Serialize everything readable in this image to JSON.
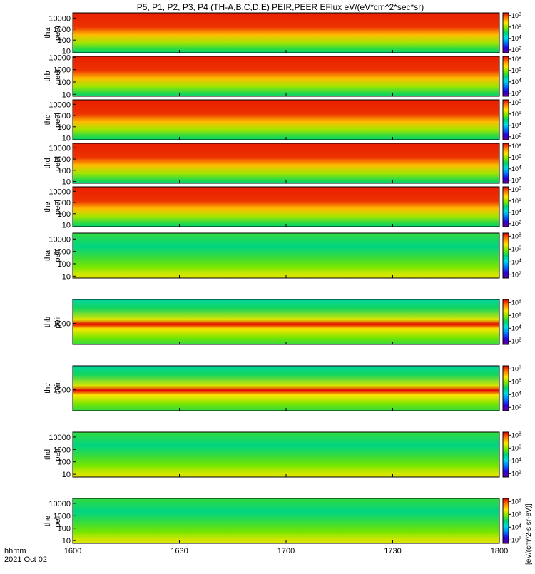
{
  "figure": {
    "title": "P5, P1, P2, P3, P4 (TH-A,B,C,D,E) PEIR,PEER EFlux eV/(eV*cm^2*sec*sr)",
    "time_label": "hhmm",
    "date_label": "2021 Oct 02",
    "colorbar_unit_label": "[eV/(cm^2-s sr-eV)]"
  },
  "chart_data": [
    {
      "type": "heatmap",
      "probe": "tha",
      "species": "peer",
      "ylabel_1": "tha",
      "ylabel_2": "peer",
      "y_scale": "log",
      "y_ticks": [
        "10000",
        "1000",
        "100",
        "10"
      ],
      "y_tick_values": [
        10000,
        1000,
        100,
        10
      ],
      "ylim": [
        7,
        30000
      ],
      "x_ticks": [
        "1600",
        "1630",
        "1700",
        "1730",
        "1800"
      ],
      "cbar_ticks": [
        "10^8",
        "10^6",
        "10^4",
        "10^2"
      ],
      "cbar_tick_values": [
        100000000,
        1000000,
        10000,
        100
      ],
      "cbar_lim": [
        30,
        300000000
      ],
      "palette": "red"
    },
    {
      "type": "heatmap",
      "probe": "thb",
      "species": "peer",
      "ylabel_1": "thb",
      "ylabel_2": "peer",
      "y_scale": "log",
      "y_ticks": [
        "10000",
        "1000",
        "100",
        "10"
      ],
      "y_tick_values": [
        10000,
        1000,
        100,
        10
      ],
      "ylim": [
        7,
        12000
      ],
      "x_ticks": [
        "1600",
        "1630",
        "1700",
        "1730",
        "1800"
      ],
      "cbar_ticks": [
        "10^8",
        "10^6",
        "10^4",
        "10^2"
      ],
      "cbar_tick_values": [
        100000000,
        1000000,
        10000,
        100
      ],
      "cbar_lim": [
        30,
        300000000
      ],
      "palette": "red"
    },
    {
      "type": "heatmap",
      "probe": "thc",
      "species": "peer",
      "ylabel_1": "thc",
      "ylabel_2": "peer",
      "y_scale": "log",
      "y_ticks": [
        "10000",
        "1000",
        "100",
        "10"
      ],
      "y_tick_values": [
        10000,
        1000,
        100,
        10
      ],
      "ylim": [
        7,
        25000
      ],
      "x_ticks": [
        "1600",
        "1630",
        "1700",
        "1730",
        "1800"
      ],
      "cbar_ticks": [
        "10^8",
        "10^6",
        "10^4",
        "10^2"
      ],
      "cbar_tick_values": [
        100000000,
        1000000,
        10000,
        100
      ],
      "cbar_lim": [
        30,
        300000000
      ],
      "palette": "red"
    },
    {
      "type": "heatmap",
      "probe": "thd",
      "species": "peer",
      "ylabel_1": "thd",
      "ylabel_2": "peer",
      "y_scale": "log",
      "y_ticks": [
        "10000",
        "1000",
        "100",
        "10"
      ],
      "y_tick_values": [
        10000,
        1000,
        100,
        10
      ],
      "ylim": [
        7,
        25000
      ],
      "x_ticks": [
        "1600",
        "1630",
        "1700",
        "1730",
        "1800"
      ],
      "cbar_ticks": [
        "10^8",
        "10^6",
        "10^4",
        "10^2"
      ],
      "cbar_tick_values": [
        100000000,
        1000000,
        10000,
        100
      ],
      "cbar_lim": [
        30,
        300000000
      ],
      "palette": "red"
    },
    {
      "type": "heatmap",
      "probe": "the",
      "species": "peer",
      "ylabel_1": "the",
      "ylabel_2": "peer",
      "y_scale": "log",
      "y_ticks": [
        "10000",
        "1000",
        "100",
        "10"
      ],
      "y_tick_values": [
        10000,
        1000,
        100,
        10
      ],
      "ylim": [
        7,
        25000
      ],
      "x_ticks": [
        "1600",
        "1630",
        "1700",
        "1730",
        "1800"
      ],
      "cbar_ticks": [
        "10^8",
        "10^6",
        "10^4",
        "10^2"
      ],
      "cbar_tick_values": [
        100000000,
        1000000,
        10000,
        100
      ],
      "cbar_lim": [
        30,
        300000000
      ],
      "palette": "red"
    },
    {
      "type": "heatmap",
      "probe": "tha",
      "species": "peir",
      "ylabel_1": "tha",
      "ylabel_2": "peir",
      "y_scale": "log",
      "y_ticks": [
        "10000",
        "1000",
        "100",
        "10"
      ],
      "y_tick_values": [
        10000,
        1000,
        100,
        10
      ],
      "ylim": [
        7,
        30000
      ],
      "x_ticks": [
        "1600",
        "1630",
        "1700",
        "1730",
        "1800"
      ],
      "cbar_ticks": [
        "10^8",
        "10^6",
        "10^4",
        "10^2"
      ],
      "cbar_tick_values": [
        100000000,
        1000000,
        10000,
        100
      ],
      "cbar_lim": [
        30,
        300000000
      ],
      "palette": "green"
    },
    {
      "type": "heatmap",
      "probe": "thb",
      "species": "peir",
      "ylabel_1": "thb",
      "ylabel_2": "peir",
      "y_scale": "log",
      "y_ticks": [
        "1000"
      ],
      "y_tick_values": [
        1000
      ],
      "ylim": [
        60,
        25000
      ],
      "x_ticks": [
        "1600",
        "1630",
        "1700",
        "1730",
        "1800"
      ],
      "cbar_ticks": [
        "10^8",
        "10^6",
        "10^4",
        "10^2"
      ],
      "cbar_tick_values": [
        100000000,
        1000000,
        10000,
        100
      ],
      "cbar_lim": [
        30,
        300000000
      ],
      "palette": "band"
    },
    {
      "type": "heatmap",
      "probe": "thc",
      "species": "peir",
      "ylabel_1": "thc",
      "ylabel_2": "peir",
      "y_scale": "log",
      "y_ticks": [
        "1000"
      ],
      "y_tick_values": [
        1000
      ],
      "ylim": [
        60,
        25000
      ],
      "x_ticks": [
        "1600",
        "1630",
        "1700",
        "1730",
        "1800"
      ],
      "cbar_ticks": [
        "10^8",
        "10^6",
        "10^4",
        "10^2"
      ],
      "cbar_tick_values": [
        100000000,
        1000000,
        10000,
        100
      ],
      "cbar_lim": [
        30,
        300000000
      ],
      "palette": "band"
    },
    {
      "type": "heatmap",
      "probe": "thd",
      "species": "peir",
      "ylabel_1": "thd",
      "ylabel_2": "peir",
      "y_scale": "log",
      "y_ticks": [
        "10000",
        "1000",
        "100",
        "10"
      ],
      "y_tick_values": [
        10000,
        1000,
        100,
        10
      ],
      "ylim": [
        6,
        25000
      ],
      "x_ticks": [
        "1600",
        "1630",
        "1700",
        "1730",
        "1800"
      ],
      "cbar_ticks": [
        "10^8",
        "10^6",
        "10^4",
        "10^2"
      ],
      "cbar_tick_values": [
        100000000,
        1000000,
        10000,
        100
      ],
      "cbar_lim": [
        30,
        300000000
      ],
      "palette": "green"
    },
    {
      "type": "heatmap",
      "probe": "the",
      "species": "peir",
      "ylabel_1": "the",
      "ylabel_2": "peir",
      "y_scale": "log",
      "y_ticks": [
        "10000",
        "1000",
        "100",
        "10"
      ],
      "y_tick_values": [
        10000,
        1000,
        100,
        10
      ],
      "ylim": [
        6,
        25000
      ],
      "x_ticks": [
        "1600",
        "1630",
        "1700",
        "1730",
        "1800"
      ],
      "cbar_ticks": [
        "10^8",
        "10^6",
        "10^4",
        "10^2"
      ],
      "cbar_tick_values": [
        100000000,
        1000000,
        10000,
        100
      ],
      "cbar_lim": [
        30,
        300000000
      ],
      "palette": "green"
    }
  ]
}
